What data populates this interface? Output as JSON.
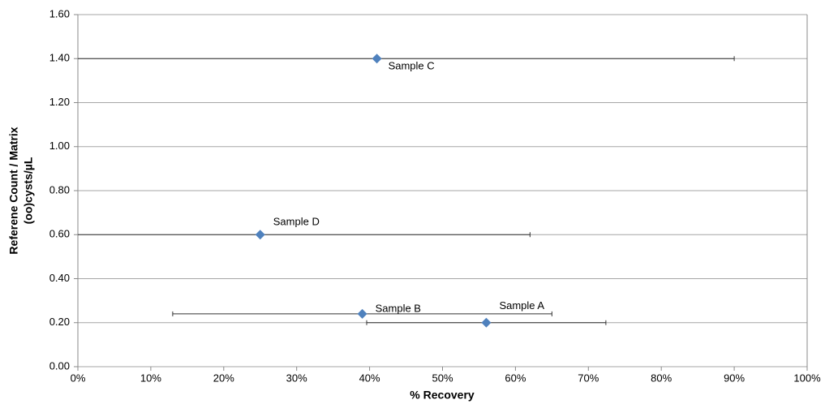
{
  "chart_data": {
    "type": "scatter",
    "xlabel": "% Recovery",
    "ylabel": [
      "Referene Count / Matrix",
      "(oo)cysts/µL"
    ],
    "labels": [
      "Sample A",
      "Sample B",
      "Sample C",
      "Sample D"
    ],
    "x": [
      56,
      39,
      41,
      25
    ],
    "xerr": [
      16.4,
      26,
      49,
      37
    ],
    "values": [
      0.2,
      0.24,
      1.4,
      0.6
    ],
    "color": "#4f81bd",
    "xlim": [
      0,
      100
    ],
    "xticks": [
      {
        "value": 0,
        "label": "0%"
      },
      {
        "value": 10,
        "label": "10%"
      },
      {
        "value": 20,
        "label": "20%"
      },
      {
        "value": 30,
        "label": "30%"
      },
      {
        "value": 40,
        "label": "40%"
      },
      {
        "value": 50,
        "label": "50%"
      },
      {
        "value": 60,
        "label": "60%"
      },
      {
        "value": 70,
        "label": "70%"
      },
      {
        "value": 80,
        "label": "80%"
      },
      {
        "value": 90,
        "label": "90%"
      },
      {
        "value": 100,
        "label": "100%"
      }
    ],
    "ylim": [
      0,
      1.6
    ],
    "yticks": [
      {
        "value": 0,
        "label": "0.00"
      },
      {
        "value": 0.2,
        "label": "0.20"
      },
      {
        "value": 0.4,
        "label": "0.40"
      },
      {
        "value": 0.6,
        "label": "0.60"
      },
      {
        "value": 0.8,
        "label": "0.80"
      },
      {
        "value": 1,
        "label": "1.00"
      },
      {
        "value": 1.2,
        "label": "1.20"
      },
      {
        "value": 1.4,
        "label": "1.40"
      },
      {
        "value": 1.6,
        "label": "1.60"
      }
    ],
    "grid": true
  }
}
